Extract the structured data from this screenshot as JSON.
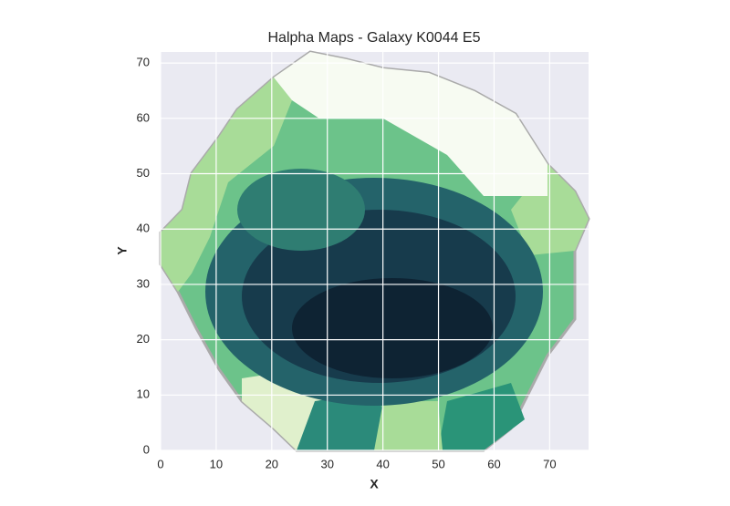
{
  "chart_data": {
    "type": "image",
    "title": "Halpha Maps - Galaxy K0044 E5",
    "x_label": "X",
    "y_label": "Y",
    "xlim": [
      0,
      77
    ],
    "ylim": [
      0,
      72
    ],
    "xticks": [
      0,
      10,
      20,
      30,
      40,
      50,
      60,
      70
    ],
    "yticks": [
      0,
      10,
      20,
      30,
      40,
      50,
      60,
      70
    ],
    "grid": true
  }
}
